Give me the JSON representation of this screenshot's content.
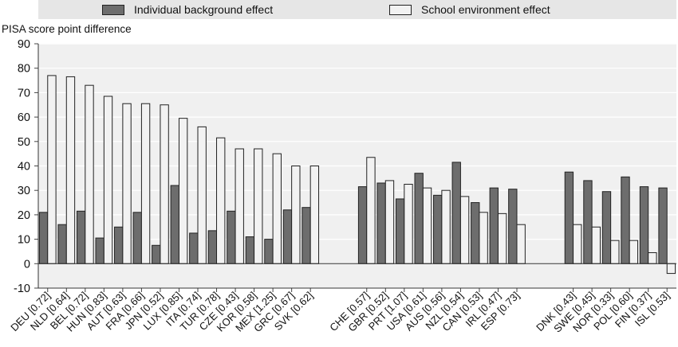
{
  "chart_data": {
    "type": "bar",
    "ylabel": "PISA score point difference",
    "ylim": [
      -10,
      90
    ],
    "yticks": [
      -10,
      0,
      10,
      20,
      30,
      40,
      50,
      60,
      70,
      80,
      90
    ],
    "grid": true,
    "legend_position": "top",
    "groups": [
      [
        "DEU [0.72]",
        "NLD [0.64]",
        "BEL [0.72]",
        "HUN [0.83]",
        "AUT [0.63]",
        "FRA [0.66]",
        "JPN [0.52]",
        "LUX [0.85]",
        "ITA [0.74]",
        "TUR [0.78]",
        "CZE [0.43]",
        "KOR [0.58]",
        "MEX [1.25]",
        "GRC [0.67]",
        "SVK [0.62]"
      ],
      [
        "CHE [0.57]",
        "GBR [0.52]",
        "PRT [1.07]",
        "USA [0.61]",
        "AUS [0.56]",
        "NZL [0.54]",
        "CAN [0.53]",
        "IRL [0.47]",
        "ESP [0.73]"
      ],
      [
        "DNK [0.43]",
        "SWE [0.45]",
        "NOR [0.33]",
        "POL [0.60]",
        "FIN [0.37]",
        "ISL [0.53]"
      ]
    ],
    "series": [
      {
        "name": "Individual background effect",
        "color": "#6d6d6d",
        "values": [
          21,
          16,
          21.5,
          10.5,
          15,
          21,
          7.5,
          32,
          12.5,
          13.5,
          21.5,
          11,
          10,
          22,
          23,
          31.5,
          33,
          26.5,
          37,
          28,
          41.5,
          25,
          31,
          30.5,
          37.5,
          34,
          29.5,
          35.5,
          31.5,
          31
        ]
      },
      {
        "name": "School environment effect",
        "color": "#f2f2f2",
        "values": [
          77,
          76.5,
          73,
          68.5,
          65.5,
          65.5,
          65,
          59.5,
          56,
          51.5,
          47,
          47,
          45,
          40,
          40,
          43.5,
          34,
          32.5,
          31,
          30,
          27.5,
          21,
          20.5,
          16,
          16,
          15,
          9.5,
          9.5,
          4.5,
          -4
        ]
      }
    ]
  }
}
